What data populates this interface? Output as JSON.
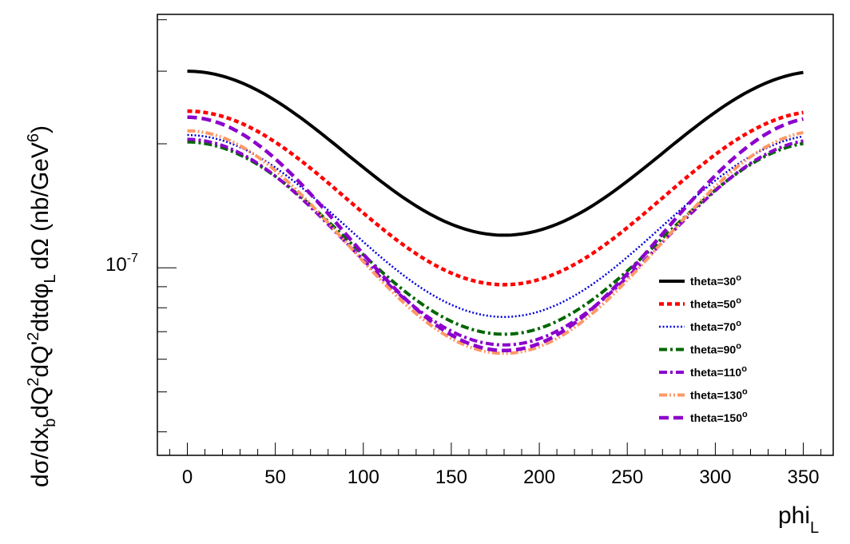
{
  "chart_data": {
    "type": "line",
    "title": "",
    "xlabel": "phi",
    "xlabel_sub": "L",
    "ylabel": {
      "main": "dσ/dx",
      "sub_b": "b",
      "part2": "dQ",
      "sup_2a": "2",
      "part3": "dQ'",
      "sup_2b": "2",
      "part4": "dtdφ",
      "sub_L": "L",
      "part5": "dΩ (nb/GeV",
      "sup_6": "6",
      "part6": ")"
    },
    "xlim": [
      -17,
      367
    ],
    "ylim_log10": [
      -7.455,
      -6.385
    ],
    "y_scale": "log",
    "x_ticks": [
      0,
      50,
      100,
      150,
      200,
      250,
      300,
      350
    ],
    "x_tick_labels": [
      "0",
      "50",
      "100",
      "150",
      "200",
      "250",
      "300",
      "350"
    ],
    "y_tick_label": {
      "base": "10",
      "exponent": "-7"
    },
    "legend_position": "lower-right",
    "x": [
      0,
      10,
      20,
      30,
      40,
      50,
      60,
      70,
      80,
      90,
      100,
      110,
      120,
      130,
      140,
      150,
      160,
      170,
      180,
      190,
      200,
      210,
      220,
      230,
      240,
      250,
      260,
      270,
      280,
      290,
      300,
      310,
      320,
      330,
      340,
      350
    ],
    "series": [
      {
        "name": "theta=30",
        "deg": "o",
        "color": "#000000",
        "dash": "solid",
        "y_max": 3e-07,
        "y_min": 1.2e-07
      },
      {
        "name": "theta=50",
        "deg": "o",
        "color": "#ff0000",
        "dash": "dot",
        "y_max": 2.4e-07,
        "y_min": 9.1e-08
      },
      {
        "name": "theta=70",
        "deg": "o",
        "color": "#0000dd",
        "dash": "finedot",
        "y_max": 2.1e-07,
        "y_min": 7.6e-08
      },
      {
        "name": "theta=90",
        "deg": "o",
        "color": "#006600",
        "dash": "dashdot",
        "y_max": 2.02e-07,
        "y_min": 6.9e-08
      },
      {
        "name": "theta=110",
        "deg": "o",
        "color": "#8b00cc",
        "dash": "dashdot",
        "y_max": 2.05e-07,
        "y_min": 6.5e-08
      },
      {
        "name": "theta=130",
        "deg": "o",
        "color": "#ff9966",
        "dash": "dashdotdot",
        "y_max": 2.15e-07,
        "y_min": 6.2e-08
      },
      {
        "name": "theta=150",
        "deg": "o",
        "color": "#8b00cc",
        "dash": "dash",
        "y_max": 2.32e-07,
        "y_min": 6.3e-08
      }
    ]
  }
}
